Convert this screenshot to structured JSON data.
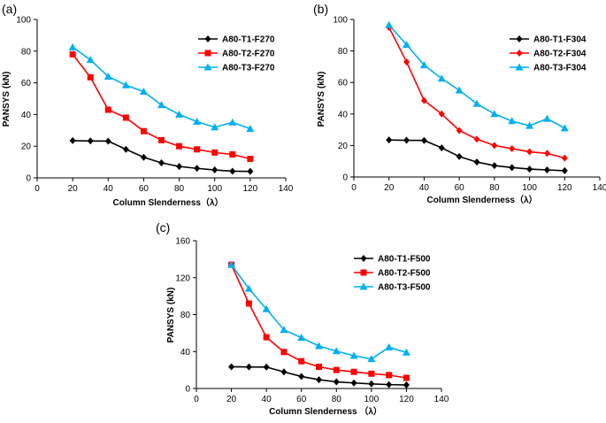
{
  "figure": {
    "panel_labels": [
      "(a)",
      "(b)",
      "(c)"
    ]
  },
  "chart_data": [
    {
      "type": "line",
      "panel": "(a)",
      "xlabel": "Column Slenderness（λ）",
      "ylabel": "PANSYS (kN)",
      "xlim": [
        0,
        140
      ],
      "ylim": [
        0,
        100
      ],
      "xticks": [
        0,
        20,
        40,
        60,
        80,
        100,
        120,
        140
      ],
      "yticks": [
        0,
        20,
        40,
        60,
        80,
        100
      ],
      "x": [
        20,
        30,
        40,
        50,
        60,
        70,
        80,
        90,
        100,
        110,
        120
      ],
      "legend_position": "top-right",
      "series": [
        {
          "name": "A80-T1-F270",
          "color": "#000000",
          "marker": "diamond",
          "values": [
            23.5,
            23.3,
            23.2,
            18,
            13,
            9.5,
            7.2,
            6,
            5,
            4.2,
            4.1
          ]
        },
        {
          "name": "A80-T2-F270",
          "color": "#ff0000",
          "marker": "square",
          "values": [
            78,
            63.5,
            43,
            38,
            29.5,
            23.8,
            20,
            18,
            16,
            14.8,
            12
          ]
        },
        {
          "name": "A80-T3-F270",
          "color": "#00b0f0",
          "marker": "triangle",
          "values": [
            82.5,
            74.5,
            64,
            58.5,
            54.5,
            46,
            40,
            35.5,
            32,
            35,
            31
          ]
        }
      ]
    },
    {
      "type": "line",
      "panel": "(b)",
      "xlabel": "Column Slenderness（λ）",
      "ylabel": "PANSYS (kN)",
      "xlim": [
        0,
        140
      ],
      "ylim": [
        0,
        100
      ],
      "xticks": [
        0,
        20,
        40,
        60,
        80,
        100,
        120,
        140
      ],
      "yticks": [
        0,
        20,
        40,
        60,
        80,
        100
      ],
      "x": [
        20,
        30,
        40,
        50,
        60,
        70,
        80,
        90,
        100,
        110,
        120
      ],
      "legend_position": "top-right",
      "series": [
        {
          "name": "A80-T1-F304",
          "color": "#000000",
          "marker": "diamond",
          "values": [
            23.5,
            23.3,
            23.2,
            18.5,
            13,
            9.5,
            7.2,
            6,
            5,
            4.5,
            4
          ]
        },
        {
          "name": "A80-T2-F304",
          "color": "#ff0000",
          "marker": "diamond",
          "values": [
            95,
            73,
            48.5,
            40,
            29.5,
            24,
            20,
            18,
            16,
            15,
            12
          ]
        },
        {
          "name": "A80-T3-F304",
          "color": "#00b0f0",
          "marker": "triangle",
          "values": [
            96.5,
            84,
            71,
            62.5,
            55,
            46.5,
            40,
            35.5,
            32.5,
            37,
            31
          ]
        }
      ]
    },
    {
      "type": "line",
      "panel": "(c)",
      "xlabel": "Column Slenderness （λ）",
      "ylabel": "PANSYS (kN)",
      "xlim": [
        0,
        140
      ],
      "ylim": [
        0,
        160
      ],
      "xticks": [
        0,
        20,
        40,
        60,
        80,
        100,
        120,
        140
      ],
      "yticks": [
        0,
        40,
        80,
        120,
        160
      ],
      "x": [
        20,
        30,
        40,
        50,
        60,
        70,
        80,
        90,
        100,
        110,
        120
      ],
      "legend_position": "top-right",
      "series": [
        {
          "name": "A80-T1-F500",
          "color": "#000000",
          "marker": "diamond",
          "values": [
            23.5,
            23.3,
            23.2,
            18,
            13,
            9.5,
            7.2,
            6,
            5,
            4.2,
            3.8
          ]
        },
        {
          "name": "A80-T2-F500",
          "color": "#ff0000",
          "marker": "square",
          "values": [
            134,
            92,
            55.5,
            39.5,
            29.5,
            23.5,
            20,
            18,
            16,
            14.5,
            11.5
          ]
        },
        {
          "name": "A80-T3-F500",
          "color": "#00b0f0",
          "marker": "triangle",
          "values": [
            134,
            108,
            86,
            63.5,
            55,
            46,
            40.5,
            35.5,
            32,
            44.5,
            39
          ]
        }
      ]
    }
  ]
}
